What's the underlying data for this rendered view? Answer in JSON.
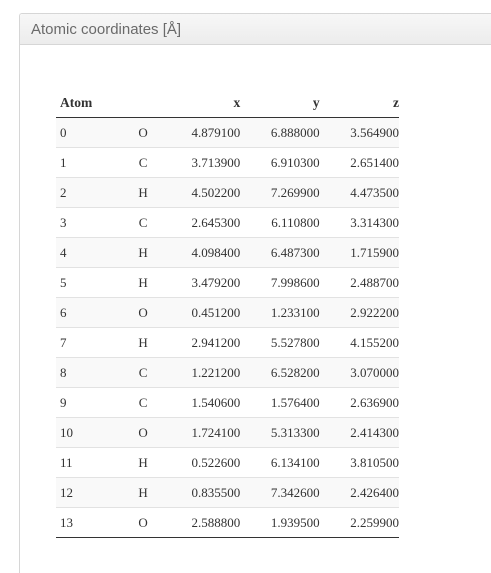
{
  "panel": {
    "title": "Atomic coordinates [Å]"
  },
  "table": {
    "headers": [
      "Atom",
      "",
      "x",
      "y",
      "z"
    ],
    "rows": [
      [
        "0",
        "O",
        "4.879100",
        "6.888000",
        "3.564900"
      ],
      [
        "1",
        "C",
        "3.713900",
        "6.910300",
        "2.651400"
      ],
      [
        "2",
        "H",
        "4.502200",
        "7.269900",
        "4.473500"
      ],
      [
        "3",
        "C",
        "2.645300",
        "6.110800",
        "3.314300"
      ],
      [
        "4",
        "H",
        "4.098400",
        "6.487300",
        "1.715900"
      ],
      [
        "5",
        "H",
        "3.479200",
        "7.998600",
        "2.488700"
      ],
      [
        "6",
        "O",
        "0.451200",
        "1.233100",
        "2.922200"
      ],
      [
        "7",
        "H",
        "2.941200",
        "5.527800",
        "4.155200"
      ],
      [
        "8",
        "C",
        "1.221200",
        "6.528200",
        "3.070000"
      ],
      [
        "9",
        "C",
        "1.540600",
        "1.576400",
        "2.636900"
      ],
      [
        "10",
        "O",
        "1.724100",
        "5.313300",
        "2.414300"
      ],
      [
        "11",
        "H",
        "0.522600",
        "6.134100",
        "3.810500"
      ],
      [
        "12",
        "H",
        "0.835500",
        "7.342600",
        "2.426400"
      ],
      [
        "13",
        "O",
        "2.588800",
        "1.939500",
        "2.259900"
      ]
    ]
  }
}
